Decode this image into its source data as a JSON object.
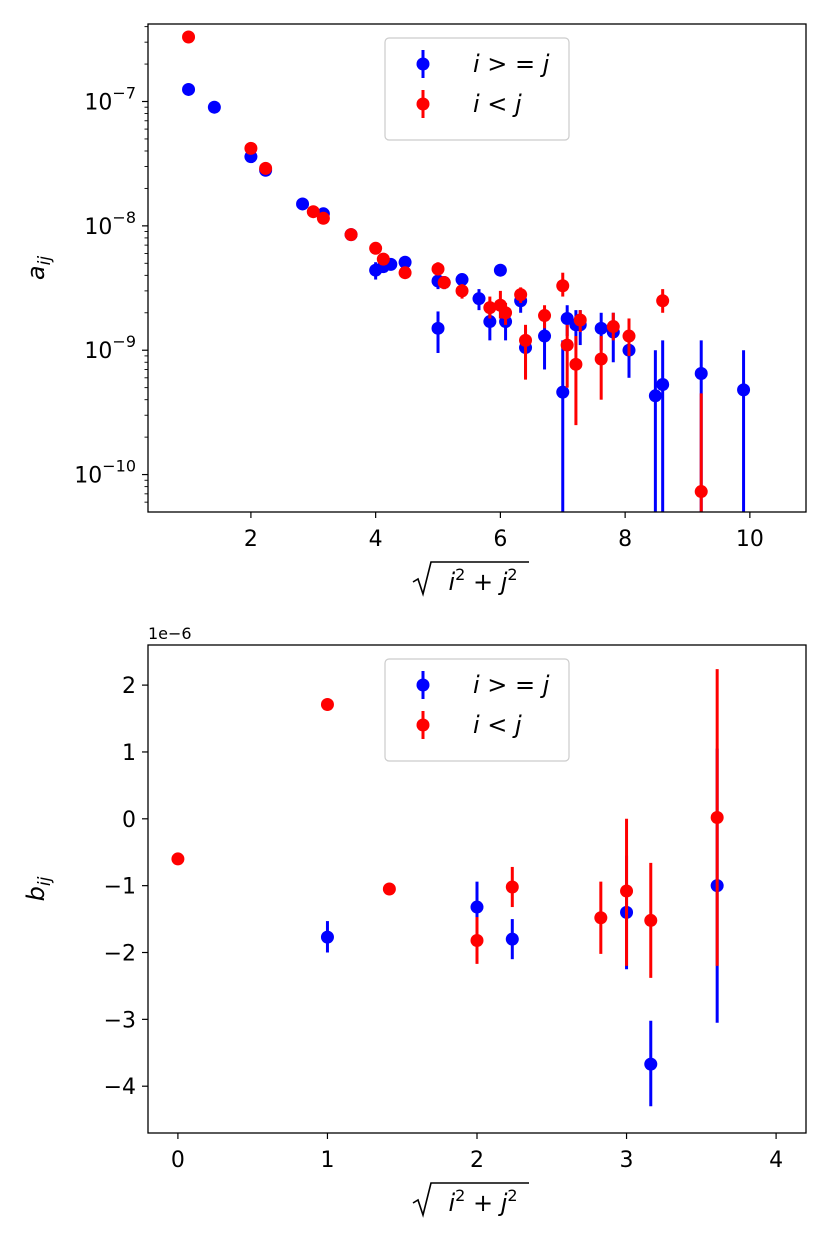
{
  "chart_data": [
    {
      "type": "scatter",
      "error_bars": true,
      "yscale": "log",
      "xlim": [
        0.35,
        10.9
      ],
      "ylim": [
        5e-11,
        4.2e-07
      ],
      "xticks": [
        2,
        4,
        6,
        8,
        10
      ],
      "x_tick_labels": [
        "2",
        "4",
        "6",
        "8",
        "10"
      ],
      "yticks": [
        1e-10,
        1e-09,
        1e-08,
        1e-07
      ],
      "y_tick_base": "10",
      "y_tick_exponents": [
        "−10",
        "−9",
        "−8",
        "−7"
      ],
      "xlabel": "√(i²+j²)",
      "ylabel": "a_ij",
      "ylabel_main": "a",
      "ylabel_sub": "ij",
      "legend_position": "upper center",
      "grid": false,
      "series": [
        {
          "name": "i > = j",
          "color": "#0000ff",
          "points": [
            {
              "x": 1.0,
              "y": 1.25e-07,
              "lo": 1.21e-07,
              "hi": 1.29e-07
            },
            {
              "x": 1.414,
              "y": 9e-08,
              "lo": 8.7e-08,
              "hi": 9.3e-08
            },
            {
              "x": 2.0,
              "y": 3.6e-08,
              "lo": 3.45e-08,
              "hi": 3.75e-08
            },
            {
              "x": 2.236,
              "y": 2.8e-08,
              "lo": 2.7e-08,
              "hi": 2.9e-08
            },
            {
              "x": 2.828,
              "y": 1.5e-08,
              "lo": 1.45e-08,
              "hi": 1.55e-08
            },
            {
              "x": 3.162,
              "y": 1.25e-08,
              "lo": 1.2e-08,
              "hi": 1.3e-08
            },
            {
              "x": 3.606,
              "y": 8.5e-09,
              "lo": 8.1e-09,
              "hi": 8.9e-09
            },
            {
              "x": 4.0,
              "y": 4.4e-09,
              "lo": 3.7e-09,
              "hi": 5.1e-09
            },
            {
              "x": 4.123,
              "y": 4.7e-09,
              "lo": 4.2e-09,
              "hi": 5.2e-09
            },
            {
              "x": 4.243,
              "y": 4.9e-09,
              "lo": 4.5e-09,
              "hi": 5.3e-09
            },
            {
              "x": 4.472,
              "y": 5.1e-09,
              "lo": 4.7e-09,
              "hi": 5.5e-09
            },
            {
              "x": 5.0,
              "y": 1.5e-09,
              "lo": 9.5e-10,
              "hi": 2.05e-09
            },
            {
              "x": 5.0,
              "y": 3.6e-09,
              "lo": 3.1e-09,
              "hi": 4.1e-09
            },
            {
              "x": 5.099,
              "y": 3.5e-09,
              "lo": 3.1e-09,
              "hi": 3.9e-09
            },
            {
              "x": 5.385,
              "y": 3.7e-09,
              "lo": 3.3e-09,
              "hi": 4.1e-09
            },
            {
              "x": 5.657,
              "y": 2.6e-09,
              "lo": 2.1e-09,
              "hi": 3.1e-09
            },
            {
              "x": 5.831,
              "y": 1.7e-09,
              "lo": 1.2e-09,
              "hi": 2.2e-09
            },
            {
              "x": 6.0,
              "y": 4.4e-09,
              "lo": 4e-09,
              "hi": 4.8e-09
            },
            {
              "x": 6.083,
              "y": 1.7e-09,
              "lo": 1.2e-09,
              "hi": 2.2e-09
            },
            {
              "x": 6.325,
              "y": 2.5e-09,
              "lo": 2e-09,
              "hi": 3e-09
            },
            {
              "x": 6.403,
              "y": 1.05e-09,
              "lo": 6e-10,
              "hi": 1.5e-09
            },
            {
              "x": 6.708,
              "y": 1.3e-09,
              "lo": 7e-10,
              "hi": 1.9e-09
            },
            {
              "x": 7.0,
              "y": 4.6e-10,
              "lo": 1e-12,
              "hi": 1.2e-09
            },
            {
              "x": 7.071,
              "y": 1.8e-09,
              "lo": 1.3e-09,
              "hi": 2.3e-09
            },
            {
              "x": 7.211,
              "y": 1.6e-09,
              "lo": 1.1e-09,
              "hi": 2.1e-09
            },
            {
              "x": 7.28,
              "y": 1.6e-09,
              "lo": 1.1e-09,
              "hi": 2.1e-09
            },
            {
              "x": 7.616,
              "y": 1.5e-09,
              "lo": 1e-09,
              "hi": 2e-09
            },
            {
              "x": 7.81,
              "y": 1.4e-09,
              "lo": 8e-10,
              "hi": 2e-09
            },
            {
              "x": 8.062,
              "y": 1e-09,
              "lo": 6e-10,
              "hi": 1.4e-09
            },
            {
              "x": 8.485,
              "y": 4.3e-10,
              "lo": 1e-12,
              "hi": 1e-09
            },
            {
              "x": 8.602,
              "y": 5.3e-10,
              "lo": 1e-12,
              "hi": 1.2e-09
            },
            {
              "x": 9.22,
              "y": 6.5e-10,
              "lo": 1e-12,
              "hi": 1.2e-09
            },
            {
              "x": 9.899,
              "y": 4.8e-10,
              "lo": 1e-12,
              "hi": 1e-09
            }
          ]
        },
        {
          "name": "i < j",
          "color": "#ff0000",
          "points": [
            {
              "x": 1.0,
              "y": 3.3e-07,
              "lo": 3.2e-07,
              "hi": 3.4e-07
            },
            {
              "x": 2.0,
              "y": 4.2e-08,
              "lo": 4.05e-08,
              "hi": 4.35e-08
            },
            {
              "x": 2.236,
              "y": 2.9e-08,
              "lo": 2.8e-08,
              "hi": 3e-08
            },
            {
              "x": 3.0,
              "y": 1.3e-08,
              "lo": 1.25e-08,
              "hi": 1.35e-08
            },
            {
              "x": 3.162,
              "y": 1.15e-08,
              "lo": 1.1e-08,
              "hi": 1.2e-08
            },
            {
              "x": 3.606,
              "y": 8.5e-09,
              "lo": 8.1e-09,
              "hi": 8.9e-09
            },
            {
              "x": 4.0,
              "y": 6.6e-09,
              "lo": 6.2e-09,
              "hi": 7e-09
            },
            {
              "x": 4.123,
              "y": 5.4e-09,
              "lo": 5e-09,
              "hi": 5.8e-09
            },
            {
              "x": 4.472,
              "y": 4.2e-09,
              "lo": 3.9e-09,
              "hi": 4.5e-09
            },
            {
              "x": 5.0,
              "y": 4.5e-09,
              "lo": 4e-09,
              "hi": 5.1e-09
            },
            {
              "x": 5.099,
              "y": 3.5e-09,
              "lo": 3.1e-09,
              "hi": 3.9e-09
            },
            {
              "x": 5.385,
              "y": 3e-09,
              "lo": 2.6e-09,
              "hi": 3.4e-09
            },
            {
              "x": 5.831,
              "y": 2.2e-09,
              "lo": 1.8e-09,
              "hi": 2.7e-09
            },
            {
              "x": 6.0,
              "y": 2.3e-09,
              "lo": 1.8e-09,
              "hi": 3e-09
            },
            {
              "x": 6.083,
              "y": 2e-09,
              "lo": 1.6e-09,
              "hi": 2.4e-09
            },
            {
              "x": 6.325,
              "y": 2.8e-09,
              "lo": 2.4e-09,
              "hi": 3.2e-09
            },
            {
              "x": 6.403,
              "y": 1.2e-09,
              "lo": 5.8e-10,
              "hi": 1.6e-09
            },
            {
              "x": 6.708,
              "y": 1.9e-09,
              "lo": 1.5e-09,
              "hi": 2.3e-09
            },
            {
              "x": 7.0,
              "y": 3.3e-09,
              "lo": 2.7e-09,
              "hi": 4.2e-09
            },
            {
              "x": 7.071,
              "y": 1.1e-09,
              "lo": 5e-10,
              "hi": 1.6e-09
            },
            {
              "x": 7.211,
              "y": 7.7e-10,
              "lo": 2.5e-10,
              "hi": 1.3e-09
            },
            {
              "x": 7.28,
              "y": 1.75e-09,
              "lo": 1.4e-09,
              "hi": 2.1e-09
            },
            {
              "x": 7.616,
              "y": 8.5e-10,
              "lo": 4e-10,
              "hi": 1.3e-09
            },
            {
              "x": 7.81,
              "y": 1.55e-09,
              "lo": 1.2e-09,
              "hi": 2e-09
            },
            {
              "x": 8.062,
              "y": 1.3e-09,
              "lo": 9e-10,
              "hi": 1.8e-09
            },
            {
              "x": 8.602,
              "y": 2.5e-09,
              "lo": 2e-09,
              "hi": 3.1e-09
            },
            {
              "x": 9.22,
              "y": 7.3e-11,
              "lo": 1e-12,
              "hi": 4.5e-10
            }
          ]
        }
      ]
    },
    {
      "type": "scatter",
      "error_bars": true,
      "yscale": "linear",
      "xlim": [
        -0.2,
        4.2
      ],
      "ylim": [
        -4.7,
        2.6
      ],
      "xticks": [
        0,
        1,
        2,
        3,
        4
      ],
      "x_tick_labels": [
        "0",
        "1",
        "2",
        "3",
        "4"
      ],
      "yticks": [
        -4,
        -3,
        -2,
        -1,
        0,
        1,
        2
      ],
      "y_tick_labels": [
        "−4",
        "−3",
        "−2",
        "−1",
        "0",
        "1",
        "2"
      ],
      "offset_text": "1e−6",
      "xlabel": "√(i²+j²)",
      "ylabel": "b_ij",
      "ylabel_main": "b",
      "ylabel_sub": "ij",
      "legend_position": "upper center",
      "grid": false,
      "series": [
        {
          "name": "i > = j",
          "color": "#0000ff",
          "points": [
            {
              "x": 1.0,
              "y": -1.77,
              "lo": -2.0,
              "hi": -1.53
            },
            {
              "x": 2.0,
              "y": -1.32,
              "lo": -1.7,
              "hi": -0.94
            },
            {
              "x": 2.236,
              "y": -1.8,
              "lo": -2.1,
              "hi": -1.5
            },
            {
              "x": 3.0,
              "y": -1.4,
              "lo": -2.25,
              "hi": -0.55
            },
            {
              "x": 3.162,
              "y": -3.67,
              "lo": -4.3,
              "hi": -3.02
            },
            {
              "x": 3.606,
              "y": -1.0,
              "lo": -3.05,
              "hi": 1.05
            }
          ]
        },
        {
          "name": "i < j",
          "color": "#ff0000",
          "points": [
            {
              "x": 0.0,
              "y": -0.6,
              "lo": -0.65,
              "hi": -0.55
            },
            {
              "x": 1.0,
              "y": 1.71,
              "lo": 1.66,
              "hi": 1.76
            },
            {
              "x": 1.414,
              "y": -1.05,
              "lo": -1.1,
              "hi": -1.0
            },
            {
              "x": 2.0,
              "y": -1.82,
              "lo": -2.17,
              "hi": -1.47
            },
            {
              "x": 2.236,
              "y": -1.02,
              "lo": -1.32,
              "hi": -0.72
            },
            {
              "x": 2.828,
              "y": -1.48,
              "lo": -2.02,
              "hi": -0.94
            },
            {
              "x": 3.0,
              "y": -1.08,
              "lo": -2.2,
              "hi": 0.0
            },
            {
              "x": 3.162,
              "y": -1.52,
              "lo": -2.38,
              "hi": -0.66
            },
            {
              "x": 3.606,
              "y": 0.02,
              "lo": -2.2,
              "hi": 2.24
            }
          ]
        }
      ]
    }
  ]
}
